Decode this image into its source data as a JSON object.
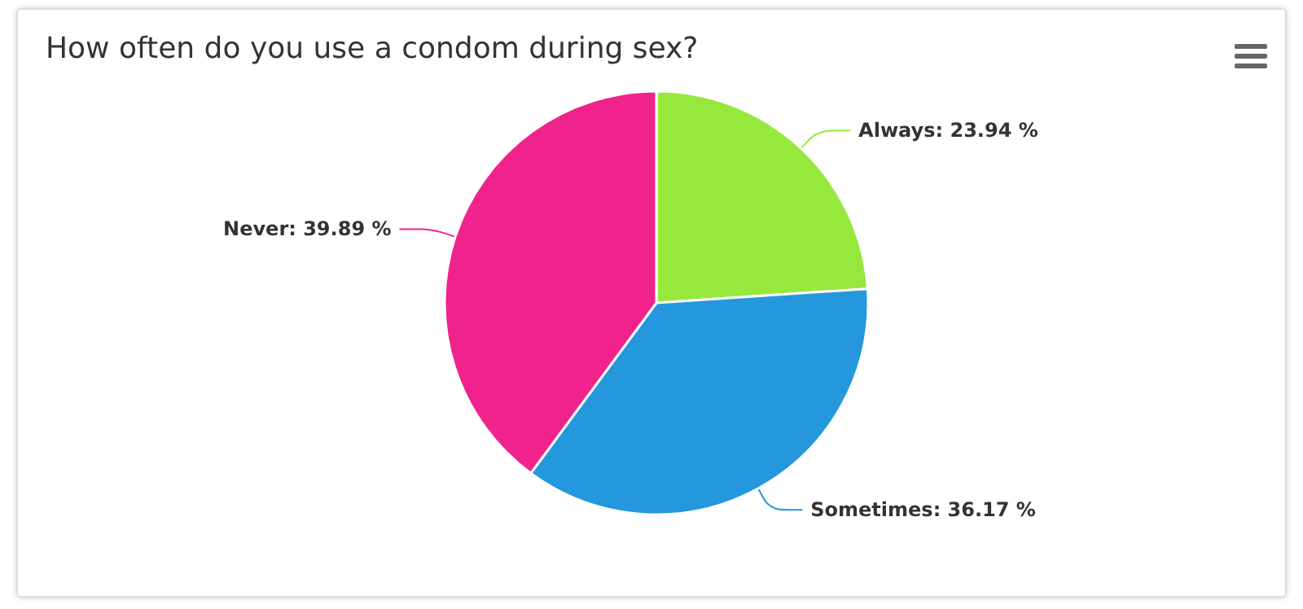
{
  "chart_data": {
    "type": "pie",
    "title": "How often do you use a condom during sex?",
    "categories": [
      "Always",
      "Sometimes",
      "Never"
    ],
    "values": [
      23.94,
      36.17,
      39.89
    ],
    "colors": [
      "#96e83c",
      "#2597dc",
      "#f0238c"
    ],
    "value_labels": [
      "23.94 %",
      "36.17 %",
      "39.89 %"
    ],
    "legend": false
  }
}
